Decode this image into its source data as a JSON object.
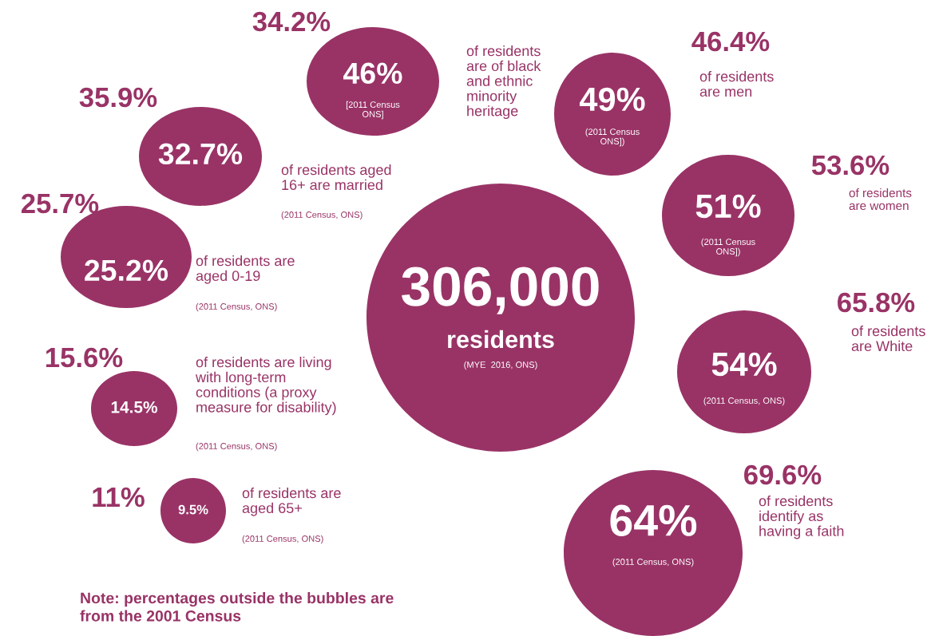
{
  "chart_data": {
    "type": "other",
    "categories": [
      "residents",
      "of residents\nare of black\nand ethnic\nminority\nheritage",
      "of residents aged\n16+ are married",
      "of residents are\naged 0-19",
      "of residents are living\nwith long-term\nconditions (a proxy\nmeasure for disability)",
      "of residents are\naged 65+",
      "of residents\nare men",
      "of residents\nare women",
      "of residents\nare White",
      "of residents\nidentify as\nhaving a faith"
    ],
    "series": [
      {
        "color": "#993366",
        "values": [
          306000,
          46,
          32.7,
          25.2,
          14.5,
          9.5,
          49,
          51,
          54,
          64
        ],
        "value_labels": [
          "306,000",
          "46%",
          "32.7%",
          "25.2%",
          "14.5%",
          "9.5%",
          "49%",
          "51%",
          "54%",
          "64%"
        ]
      },
      {
        "color": "#993366",
        "values": [
          null,
          34.2,
          35.9,
          25.7,
          15.6,
          11,
          46.4,
          53.6,
          65.8,
          69.6
        ],
        "value_labels": [
          null,
          "34.2%",
          "35.9%",
          "25.7%",
          "15.6%",
          "11%",
          "46.4%",
          "53.6%",
          "65.8%",
          "69.6%"
        ]
      }
    ],
    "annotations": [
      "(MYE  2016, ONS)",
      "[2011 Census\nONS]",
      "(2011 Census, ONS)",
      "(2011 Census, ONS)",
      "(2011 Census, ONS)",
      "(2011 Census, ONS)",
      "(2011 Census\nONS])",
      "(2011 Census\nONS])",
      "(2011 Census, ONS)",
      "(2011 Census, ONS)",
      "Note: percentages outside the bubbles are\nfrom the 2001 Census"
    ]
  }
}
